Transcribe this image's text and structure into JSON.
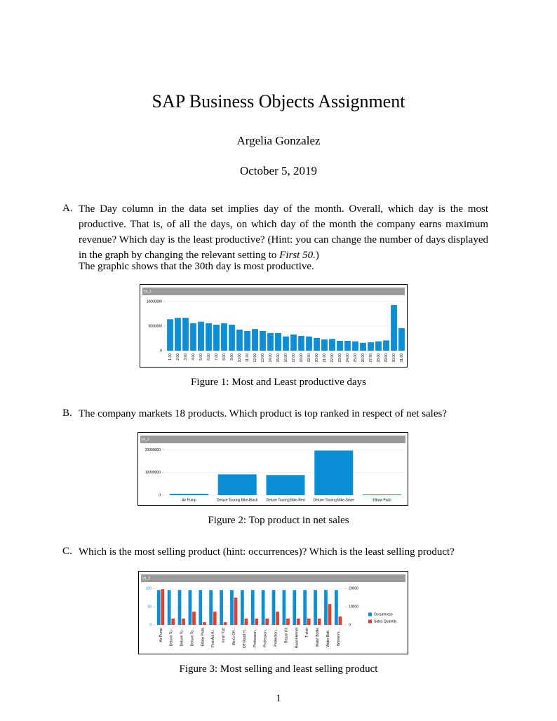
{
  "document": {
    "title": "SAP Business Objects Assignment",
    "author": "Argelia Gonzalez",
    "date": "October 5, 2019",
    "items": [
      {
        "label": "A.",
        "question": "The Day column in the data set implies day of the month. Overall, which day is the most productive. That is, of all the days, on which day of the month the company earns maximum revenue? Which day is the least productive? (Hint: you can change the number of days displayed in the graph by changing the relevant setting to",
        "emphasis": "First 50.",
        "question_end": ")",
        "answer": "The graphic shows that the 30th day is most productive.",
        "caption": "Figure 1: Most and Least productive days"
      },
      {
        "label": "B.",
        "question": "The company markets 18 products. Which product is top ranked in respect of net sales?",
        "caption": "Figure 2: Top product in net sales"
      },
      {
        "label": "C.",
        "question": "Which is the most selling product (hint: occurrences)? Which is the least selling product?",
        "caption": "Figure 3: Most selling and least selling product"
      }
    ],
    "page_number": "1"
  },
  "chart_data": [
    {
      "type": "bar",
      "title": "ch_1",
      "categories": [
        "1.00",
        "2.00",
        "3.00",
        "4.00",
        "5.00",
        "6.00",
        "7.00",
        "8.00",
        "9.00",
        "10.00",
        "11.00",
        "12.00",
        "13.00",
        "14.00",
        "15.00",
        "16.00",
        "17.00",
        "18.00",
        "19.00",
        "20.00",
        "21.00",
        "22.00",
        "23.00",
        "24.00",
        "25.00",
        "26.00",
        "27.00",
        "28.00",
        "29.00",
        "30.00",
        "31.00"
      ],
      "values": [
        6400000,
        6700000,
        6700000,
        5600000,
        5900000,
        5600000,
        5300000,
        5600000,
        5300000,
        4300000,
        4000000,
        4400000,
        4000000,
        3600000,
        3600000,
        2900000,
        3300000,
        3000000,
        2900000,
        2600000,
        2300000,
        2400000,
        2000000,
        2000000,
        1900000,
        1600000,
        1700000,
        1900000,
        2100000,
        9300000,
        4600000
      ],
      "color": "#0a8fd6",
      "ylim": [
        0,
        11000000
      ],
      "yticks": [
        0,
        5000000,
        10000000
      ],
      "grid": true
    },
    {
      "type": "bar",
      "title": "ch_2",
      "categories": [
        "Air Pump",
        "Deluxe Touring Bike-Black",
        "Deluxe Touring Bike-Red",
        "Deluxe Touring Bike-Silver",
        "Elbow Pads"
      ],
      "values": [
        600000,
        9200000,
        8900000,
        19700000,
        300000
      ],
      "color": "#0a8fd6",
      "ylim": [
        0,
        22000000
      ],
      "yticks": [
        0,
        10000000,
        20000000
      ],
      "grid": true
    },
    {
      "type": "bar",
      "title": "ch_3",
      "categories": [
        "Air Pump",
        "Deluxe To...",
        "Deluxe To...",
        "Deluxe To...",
        "Elbow Pads",
        "First Aid Ki...",
        "Inner Tub",
        "Men's Off...",
        "Off Road H...",
        "Profession...",
        "Profession...",
        "Protection...",
        "Repair Kit",
        "Road Helmet",
        "T-shirt",
        "Water Bottle",
        "Water Bott...",
        "Women's ..."
      ],
      "series": [
        {
          "name": "Occurences",
          "color": "#0a8fd6",
          "values": [
            96,
            96,
            96,
            96,
            96,
            96,
            96,
            96,
            96,
            96,
            96,
            96,
            96,
            96,
            96,
            96,
            96,
            96
          ]
        },
        {
          "name": "Sales Quantity",
          "color": "#e0412f",
          "axis": "y2",
          "values": [
            19600,
            3500,
            3500,
            7300,
            1500,
            7300,
            1500,
            15000,
            3500,
            3500,
            3500,
            7300,
            3500,
            3500,
            3500,
            3500,
            11500,
            4600
          ]
        }
      ],
      "ylim": [
        0,
        110
      ],
      "yticks": [
        0,
        50,
        100
      ],
      "y2lim": [
        0,
        22000
      ],
      "y2ticks": [
        0,
        10000,
        20000
      ],
      "grid": true,
      "legend": "right"
    }
  ]
}
